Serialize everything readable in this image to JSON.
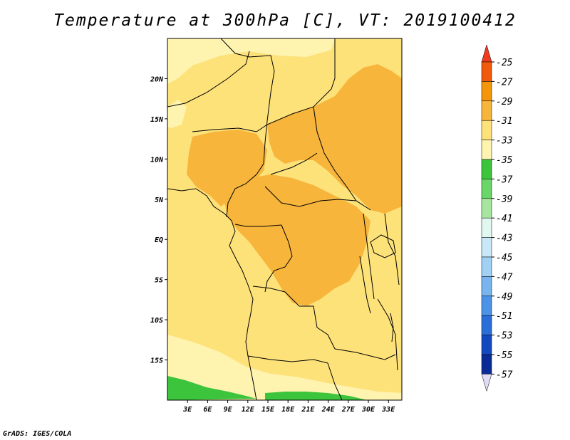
{
  "title": "Temperature at 300hPa [C], VT: 2019100412",
  "credit": "GrADS: IGES/COLA",
  "map": {
    "lon_range": [
      0,
      35
    ],
    "lat_range": [
      -20,
      25
    ],
    "lat_ticks": [
      {
        "value": 20,
        "label": "20N"
      },
      {
        "value": 15,
        "label": "15N"
      },
      {
        "value": 10,
        "label": "10N"
      },
      {
        "value": 5,
        "label": "5N"
      },
      {
        "value": 0,
        "label": "EQ"
      },
      {
        "value": -5,
        "label": "5S"
      },
      {
        "value": -10,
        "label": "10S"
      },
      {
        "value": -15,
        "label": "15S"
      }
    ],
    "lon_ticks": [
      {
        "value": 3,
        "label": "3E"
      },
      {
        "value": 6,
        "label": "6E"
      },
      {
        "value": 9,
        "label": "9E"
      },
      {
        "value": 12,
        "label": "12E"
      },
      {
        "value": 15,
        "label": "15E"
      },
      {
        "value": 18,
        "label": "18E"
      },
      {
        "value": 21,
        "label": "21E"
      },
      {
        "value": 24,
        "label": "24E"
      },
      {
        "value": 27,
        "label": "27E"
      },
      {
        "value": 30,
        "label": "30E"
      },
      {
        "value": 33,
        "label": "33E"
      }
    ],
    "fill_colors": {
      "-35_-33": "#fff3b0",
      "-33_-31": "#fde27a",
      "-31_-29": "#f8b53c",
      "-37_-35": "#3cc43c"
    }
  },
  "colorbar": {
    "labels": [
      "-25",
      "-27",
      "-29",
      "-31",
      "-33",
      "-35",
      "-37",
      "-39",
      "-41",
      "-43",
      "-45",
      "-47",
      "-49",
      "-51",
      "-53",
      "-55",
      "-57"
    ],
    "top_triangle_color": "#f03c1e",
    "bottom_triangle_color": "#e0dcf5",
    "colors": [
      "#f05a0a",
      "#f4960a",
      "#f8b53c",
      "#fde27a",
      "#fff3b0",
      "#3cc43c",
      "#6ad66a",
      "#a8e6a0",
      "#e0f8f0",
      "#c8e8f8",
      "#a0d0f4",
      "#78b4ee",
      "#4c92e6",
      "#2a6ed8",
      "#1448be",
      "#0a2a96"
    ]
  }
}
